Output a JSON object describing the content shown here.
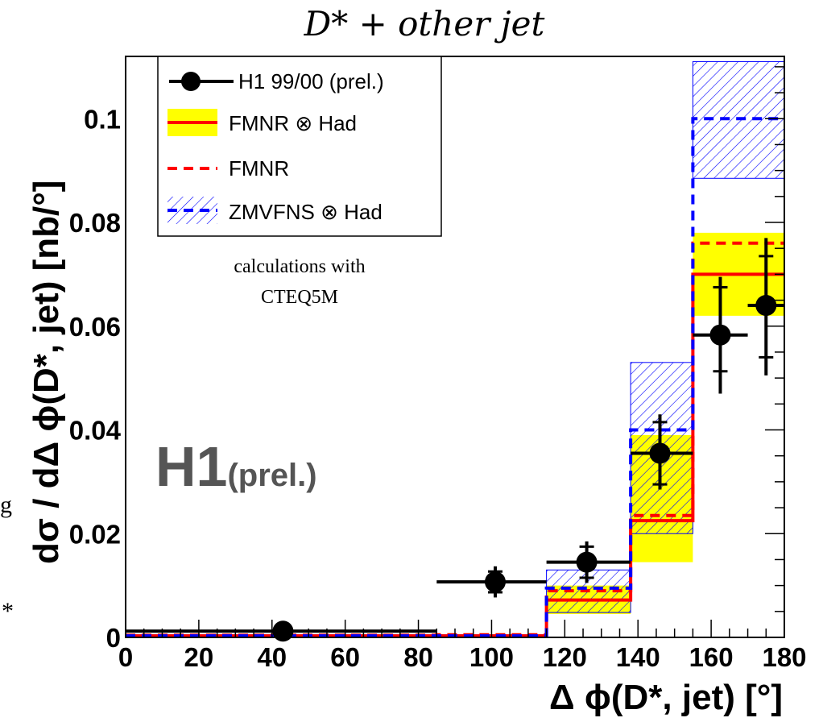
{
  "chart_data": {
    "type": "step",
    "title": "D* + other jet",
    "xlabel": "Δ ϕ(D*, jet) [°]",
    "ylabel": "dσ / dΔ ϕ(D*, jet)  [nb/°]",
    "xlim": [
      0,
      180
    ],
    "ylim": [
      0,
      0.112
    ],
    "x_ticks": [
      "0",
      "20",
      "40",
      "60",
      "80",
      "100",
      "120",
      "140",
      "160",
      "180"
    ],
    "y_ticks": [
      "0",
      "0.02",
      "0.04",
      "0.06",
      "0.08",
      "0.1"
    ],
    "bin_edges": [
      0,
      85,
      115,
      138,
      155,
      180
    ],
    "series": [
      {
        "name": "H1 99/00 (prel.)",
        "kind": "points",
        "color": "#000000",
        "points": [
          {
            "x": 43,
            "xlo": 0,
            "xhi": 85,
            "y": 0.0012,
            "stat_lo": 0.0007,
            "stat_hi": 0.0017,
            "tot_lo": 0.0005,
            "tot_hi": 0.0019
          },
          {
            "x": 101,
            "xlo": 85,
            "xhi": 115,
            "y": 0.0107,
            "stat_lo": 0.0087,
            "stat_hi": 0.0127,
            "tot_lo": 0.0077,
            "tot_hi": 0.0137
          },
          {
            "x": 126,
            "xlo": 115,
            "xhi": 138,
            "y": 0.0145,
            "stat_lo": 0.0115,
            "stat_hi": 0.0175,
            "tot_lo": 0.0105,
            "tot_hi": 0.0185
          },
          {
            "x": 146,
            "xlo": 138,
            "xhi": 155,
            "y": 0.0355,
            "stat_lo": 0.0295,
            "stat_hi": 0.0415,
            "tot_lo": 0.0285,
            "tot_hi": 0.043
          },
          {
            "x": 162.5,
            "xlo": 155,
            "xhi": 170,
            "y": 0.0583,
            "stat_lo": 0.0513,
            "stat_hi": 0.0675,
            "tot_lo": 0.047,
            "tot_hi": 0.0695
          },
          {
            "x": 175,
            "xlo": 170,
            "xhi": 180,
            "y": 0.064,
            "stat_lo": 0.054,
            "stat_hi": 0.0735,
            "tot_lo": 0.0505,
            "tot_hi": 0.077
          }
        ]
      },
      {
        "name": "FMNR ⊗ Had",
        "kind": "step_with_band",
        "color": "#ff0000",
        "band_color": "#ffff00",
        "values": [
          0.0003,
          0.0003,
          0.0072,
          0.0225,
          0.07
        ],
        "band_lo": [
          0.0001,
          0.0001,
          0.0045,
          0.0145,
          0.062
        ],
        "band_hi": [
          0.0005,
          0.0005,
          0.01,
          0.039,
          0.078
        ]
      },
      {
        "name": "FMNR",
        "kind": "dashed_step",
        "color": "#ff0000",
        "values": [
          0.0004,
          0.0005,
          0.009,
          0.0235,
          0.076
        ]
      },
      {
        "name": "ZMVFNS ⊗ Had",
        "kind": "dashed_step_with_hatched_band",
        "color": "#0000ff",
        "values": [
          0.0003,
          0.0003,
          0.0095,
          0.04,
          0.1
        ],
        "band_lo": [
          0.0001,
          0.0001,
          0.0048,
          0.02,
          0.0885
        ],
        "band_hi": [
          0.0005,
          0.0005,
          0.013,
          0.053,
          0.111
        ]
      }
    ],
    "legend": {
      "position": "top-left",
      "entries": [
        "H1 99/00 (prel.)",
        "FMNR ⊗ Had",
        "FMNR",
        "ZMVFNS ⊗ Had"
      ]
    },
    "annotations": {
      "calc_line1": "calculations with",
      "calc_line2": "CTEQ5M",
      "experiment": "H1",
      "experiment_suffix": "(prel.)",
      "edge_fragment_1": "g",
      "edge_fragment_2": "*"
    }
  }
}
